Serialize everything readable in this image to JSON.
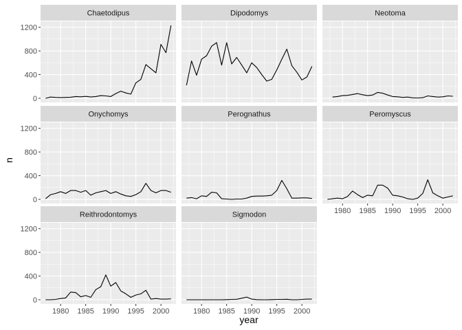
{
  "chart_data": {
    "type": "line",
    "xlabel": "year",
    "ylabel": "n",
    "xlim": [
      1976,
      2003
    ],
    "ylim": [
      -70,
      1300
    ],
    "x_ticks": [
      1980,
      1985,
      1990,
      1995,
      2000
    ],
    "y_ticks": [
      0,
      400,
      800,
      1200
    ],
    "facet_columns": 3,
    "line_color": "#000000",
    "panel_background": "#ebebeb",
    "strip_background": "#d9d9d9",
    "grid_color": "#ffffff",
    "panels": [
      {
        "name": "Chaetodipus",
        "x": [
          1977,
          1978,
          1979,
          1980,
          1981,
          1982,
          1983,
          1984,
          1985,
          1986,
          1987,
          1988,
          1989,
          1990,
          1991,
          1992,
          1993,
          1994,
          1995,
          1996,
          1997,
          1998,
          1999,
          2000,
          2001,
          2002
        ],
        "values": [
          0,
          20,
          15,
          12,
          15,
          18,
          30,
          25,
          32,
          22,
          30,
          45,
          40,
          30,
          80,
          120,
          90,
          70,
          260,
          320,
          570,
          500,
          430,
          910,
          770,
          1230
        ]
      },
      {
        "name": "Dipodomys",
        "x": [
          1977,
          1978,
          1979,
          1980,
          1981,
          1982,
          1983,
          1984,
          1985,
          1986,
          1987,
          1988,
          1989,
          1990,
          1991,
          1992,
          1993,
          1994,
          1995,
          1996,
          1997,
          1998,
          1999,
          2000,
          2001,
          2002
        ],
        "values": [
          220,
          630,
          390,
          660,
          720,
          880,
          940,
          560,
          940,
          580,
          690,
          560,
          430,
          600,
          520,
          400,
          290,
          320,
          480,
          660,
          830,
          550,
          440,
          310,
          360,
          540
        ]
      },
      {
        "name": "Neotoma",
        "x": [
          1978,
          1979,
          1980,
          1981,
          1982,
          1983,
          1984,
          1985,
          1986,
          1987,
          1988,
          1989,
          1990,
          1991,
          1992,
          1993,
          1994,
          1995,
          1996,
          1997,
          1998,
          1999,
          2000,
          2001,
          2002
        ],
        "values": [
          20,
          30,
          45,
          50,
          65,
          80,
          60,
          45,
          55,
          100,
          85,
          55,
          30,
          25,
          15,
          20,
          8,
          5,
          10,
          40,
          30,
          20,
          25,
          40,
          35
        ]
      },
      {
        "name": "Onychomys",
        "x": [
          1977,
          1978,
          1979,
          1980,
          1981,
          1982,
          1983,
          1984,
          1985,
          1986,
          1987,
          1988,
          1989,
          1990,
          1991,
          1992,
          1993,
          1994,
          1995,
          1996,
          1997,
          1998,
          1999,
          2000,
          2001,
          2002
        ],
        "values": [
          10,
          80,
          100,
          130,
          100,
          150,
          150,
          120,
          150,
          70,
          110,
          130,
          150,
          100,
          130,
          90,
          60,
          50,
          80,
          130,
          270,
          150,
          110,
          150,
          150,
          120
        ]
      },
      {
        "name": "Perognathus",
        "x": [
          1977,
          1978,
          1979,
          1980,
          1981,
          1982,
          1983,
          1984,
          1985,
          1986,
          1987,
          1988,
          1989,
          1990,
          1991,
          1992,
          1993,
          1994,
          1995,
          1996,
          1997,
          1998,
          1999,
          2000,
          2001,
          2002
        ],
        "values": [
          20,
          30,
          10,
          60,
          50,
          120,
          110,
          10,
          5,
          0,
          5,
          5,
          20,
          50,
          55,
          55,
          60,
          70,
          150,
          320,
          180,
          20,
          20,
          25,
          25,
          15
        ]
      },
      {
        "name": "Peromyscus",
        "x": [
          1977,
          1978,
          1979,
          1980,
          1981,
          1982,
          1983,
          1984,
          1985,
          1986,
          1987,
          1988,
          1989,
          1990,
          1991,
          1992,
          1993,
          1994,
          1995,
          1996,
          1997,
          1998,
          1999,
          2000,
          2001,
          2002
        ],
        "values": [
          0,
          10,
          20,
          10,
          50,
          140,
          80,
          30,
          70,
          60,
          240,
          240,
          190,
          70,
          60,
          40,
          10,
          0,
          20,
          100,
          330,
          110,
          60,
          20,
          40,
          60
        ]
      },
      {
        "name": "Reithrodontomys",
        "x": [
          1977,
          1978,
          1979,
          1980,
          1981,
          1982,
          1983,
          1984,
          1985,
          1986,
          1987,
          1988,
          1989,
          1990,
          1991,
          1992,
          1993,
          1994,
          1995,
          1996,
          1997,
          1998,
          1999,
          2000,
          2001,
          2002
        ],
        "values": [
          0,
          0,
          5,
          20,
          30,
          130,
          120,
          50,
          70,
          40,
          170,
          220,
          420,
          230,
          290,
          150,
          100,
          40,
          80,
          100,
          160,
          10,
          20,
          10,
          10,
          15
        ]
      },
      {
        "name": "Sigmodon",
        "x": [
          1977,
          1978,
          1979,
          1980,
          1981,
          1982,
          1983,
          1984,
          1985,
          1986,
          1987,
          1988,
          1989,
          1990,
          1991,
          1992,
          1993,
          1994,
          1995,
          1996,
          1997,
          1998,
          1999,
          2000,
          2001,
          2002
        ],
        "values": [
          0,
          0,
          0,
          0,
          0,
          0,
          0,
          0,
          2,
          5,
          8,
          25,
          45,
          10,
          2,
          0,
          0,
          2,
          5,
          5,
          8,
          0,
          0,
          5,
          10,
          10
        ]
      }
    ]
  }
}
